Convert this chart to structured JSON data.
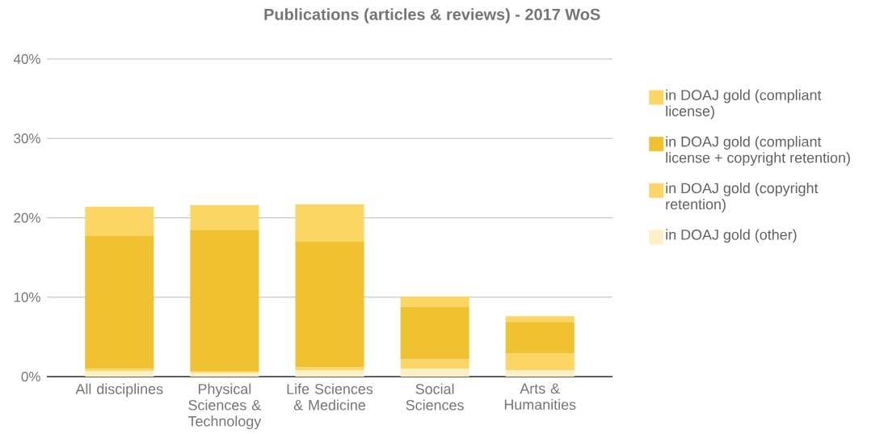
{
  "chart_data": {
    "type": "bar",
    "title": "Publications (articles & reviews) - 2017 WoS",
    "categories": [
      "All disciplines",
      "Physical Sciences & Technology",
      "Life Sciences & Medicine",
      "Social Sciences",
      "Arts & Humanities"
    ],
    "stacked": true,
    "series": [
      {
        "name": "in DOAJ gold (other)",
        "color": "#fdefc6",
        "values": [
          0.7,
          0.5,
          0.8,
          1.0,
          0.8
        ]
      },
      {
        "name": "in DOAJ gold (copyright retention)",
        "color": "#fcd664",
        "values": [
          0.3,
          0.2,
          0.4,
          1.2,
          2.1
        ]
      },
      {
        "name": "in DOAJ gold (compliant license + copyright retention)",
        "color": "#f0c232",
        "values": [
          16.7,
          17.8,
          15.8,
          6.6,
          4.0
        ]
      },
      {
        "name": "in DOAJ gold (compliant license)",
        "color": "#fcd664",
        "values": [
          3.7,
          3.1,
          4.7,
          1.3,
          0.7
        ]
      }
    ],
    "ylim": [
      0,
      40
    ],
    "yticks": [
      {
        "value": 0,
        "label": "0%"
      },
      {
        "value": 10,
        "label": "10%"
      },
      {
        "value": 20,
        "label": "20%"
      },
      {
        "value": 30,
        "label": "30%"
      },
      {
        "value": 40,
        "label": "40%"
      }
    ],
    "grid": "y",
    "legend": "right"
  }
}
